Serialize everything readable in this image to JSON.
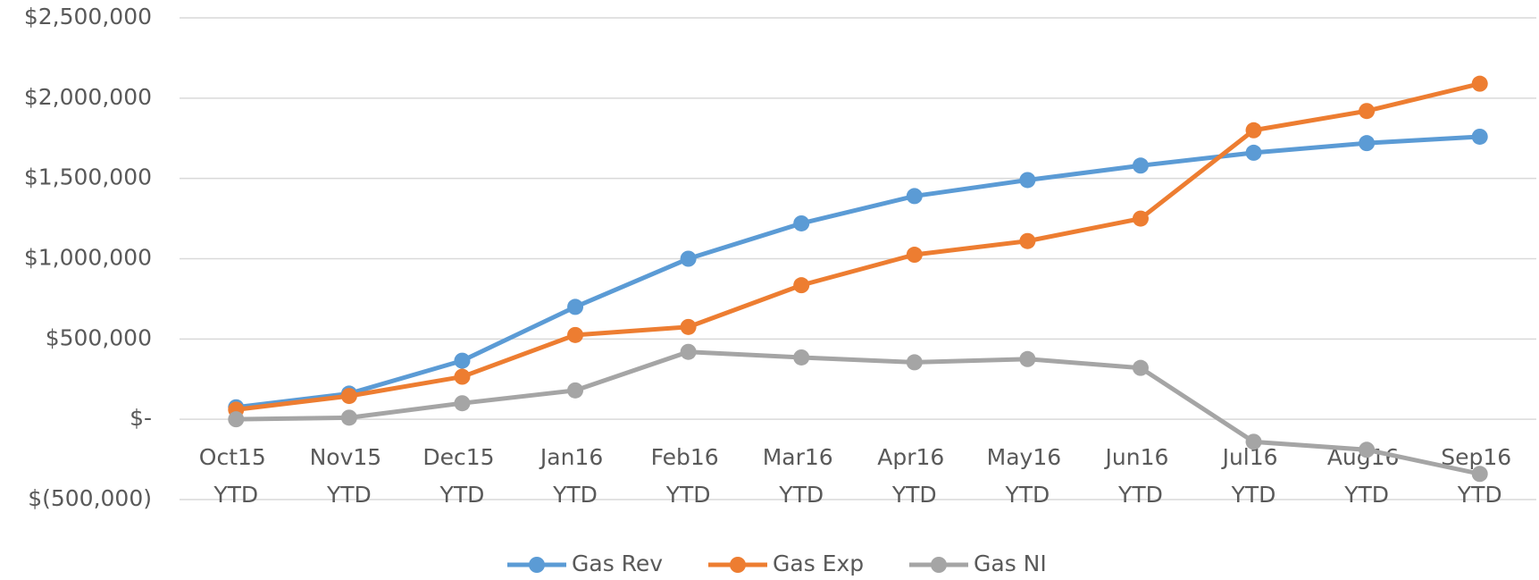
{
  "chart_data": {
    "type": "line",
    "categories": [
      "Oct15 YTD",
      "Nov15 YTD",
      "Dec15 YTD",
      "Jan16 YTD",
      "Feb16 YTD",
      "Mar16 YTD",
      "Apr16 YTD",
      "May16 YTD",
      "Jun16 YTD",
      "Jul16 YTD",
      "Aug16 YTD",
      "Sep16 YTD"
    ],
    "series": [
      {
        "name": "Gas Rev",
        "color": "#5b9bd5",
        "values": [
          75000,
          160000,
          365000,
          700000,
          1000000,
          1220000,
          1390000,
          1490000,
          1580000,
          1660000,
          1720000,
          1760000
        ]
      },
      {
        "name": "Gas Exp",
        "color": "#ed7d31",
        "values": [
          60000,
          145000,
          265000,
          525000,
          575000,
          835000,
          1025000,
          1110000,
          1250000,
          1800000,
          1920000,
          2090000
        ]
      },
      {
        "name": "Gas NI",
        "color": "#a5a5a5",
        "values": [
          0,
          10000,
          100000,
          180000,
          420000,
          385000,
          355000,
          375000,
          320000,
          -140000,
          -190000,
          -340000
        ]
      }
    ],
    "ylim": [
      -500000,
      2500000
    ],
    "yticks": [
      {
        "value": -500000,
        "label": "$(500,000)"
      },
      {
        "value": 0,
        "label": "$-"
      },
      {
        "value": 500000,
        "label": "$500,000"
      },
      {
        "value": 1000000,
        "label": "$1,000,000"
      },
      {
        "value": 1500000,
        "label": "$1,500,000"
      },
      {
        "value": 2000000,
        "label": "$2,000,000"
      },
      {
        "value": 2500000,
        "label": "$2,500,000"
      }
    ],
    "grid": true,
    "legend": "bottom"
  }
}
